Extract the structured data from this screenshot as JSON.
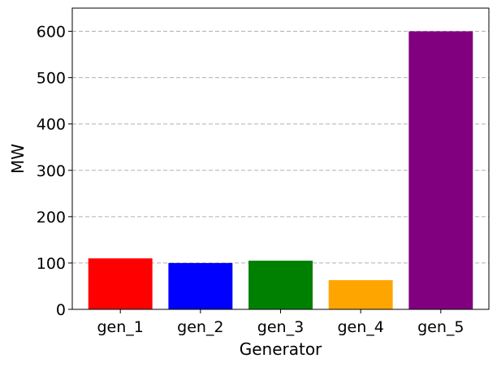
{
  "chart_data": {
    "type": "bar",
    "title": "",
    "xlabel": "Generator",
    "ylabel": "MW",
    "categories": [
      "gen_1",
      "gen_2",
      "gen_3",
      "gen_4",
      "gen_5"
    ],
    "values": [
      110,
      100,
      105,
      63,
      600
    ],
    "colors": [
      "#ff0000",
      "#0000ff",
      "#008000",
      "#ffa500",
      "#800080"
    ],
    "ylim": [
      0,
      650
    ],
    "yticks": [
      0,
      100,
      200,
      300,
      400,
      500,
      600
    ],
    "grid": "y-dashed",
    "legend": "none"
  }
}
